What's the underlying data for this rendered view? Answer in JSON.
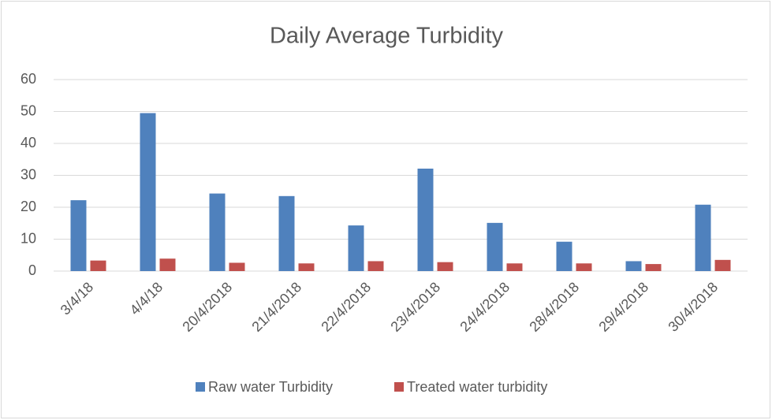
{
  "chart_data": {
    "type": "bar",
    "title": "Daily Average Turbidity",
    "categories": [
      "3/4/18",
      "4/4/18",
      "20/4/2018",
      "21/4/2018",
      "22/4/2018",
      "23/4/2018",
      "24/4/2018",
      "28/4/2018",
      "29/4/2018",
      "30/4/2018"
    ],
    "series": [
      {
        "name": "Raw water Turbidity",
        "color": "#4f81bd",
        "values": [
          22.2,
          49.5,
          24.3,
          23.5,
          14.3,
          32.1,
          15.1,
          9.2,
          3.1,
          20.8
        ]
      },
      {
        "name": "Treated water turbidity",
        "color": "#c0504d",
        "values": [
          3.3,
          3.9,
          2.6,
          2.4,
          3.1,
          2.8,
          2.4,
          2.4,
          2.2,
          3.5
        ]
      }
    ],
    "ylim": [
      0,
      60
    ],
    "yticks": [
      0,
      10,
      20,
      30,
      40,
      50,
      60
    ],
    "grid": true,
    "legend": "bottom"
  }
}
